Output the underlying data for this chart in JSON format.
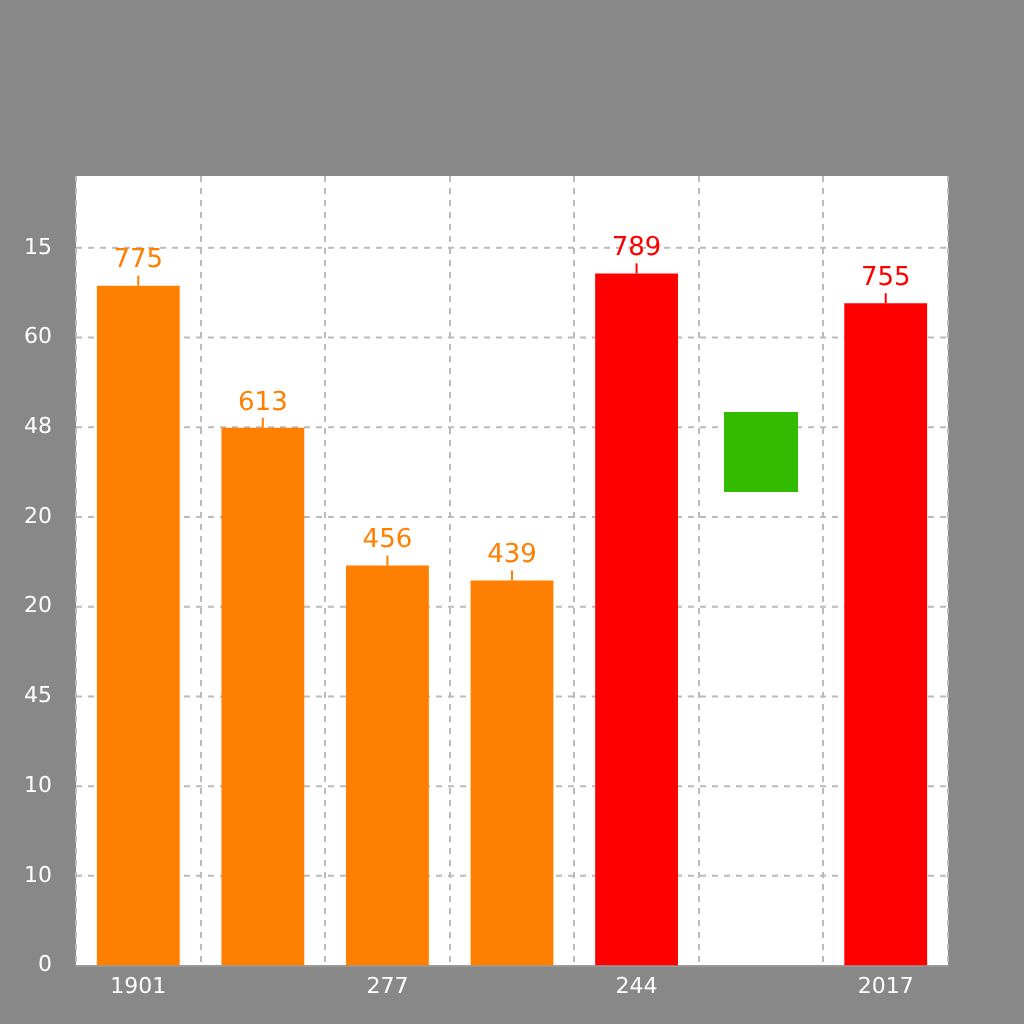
{
  "chart_data": {
    "type": "bar",
    "categories": [
      "1901",
      null,
      "277",
      null,
      "244",
      null,
      "2017"
    ],
    "values": [
      775,
      613,
      456,
      439,
      789,
      null,
      755
    ],
    "colors": [
      "#ff7f00",
      "#ff7f00",
      "#ff7f00",
      "#ff7f00",
      "#ff0000",
      "#33bb00",
      "#ff0000"
    ],
    "data_labels": true,
    "tick_labels": "x",
    "annotations": [
      "15",
      "60",
      "48",
      "20",
      "20",
      "45",
      "10",
      "10",
      "0"
    ],
    "grid": true
  }
}
